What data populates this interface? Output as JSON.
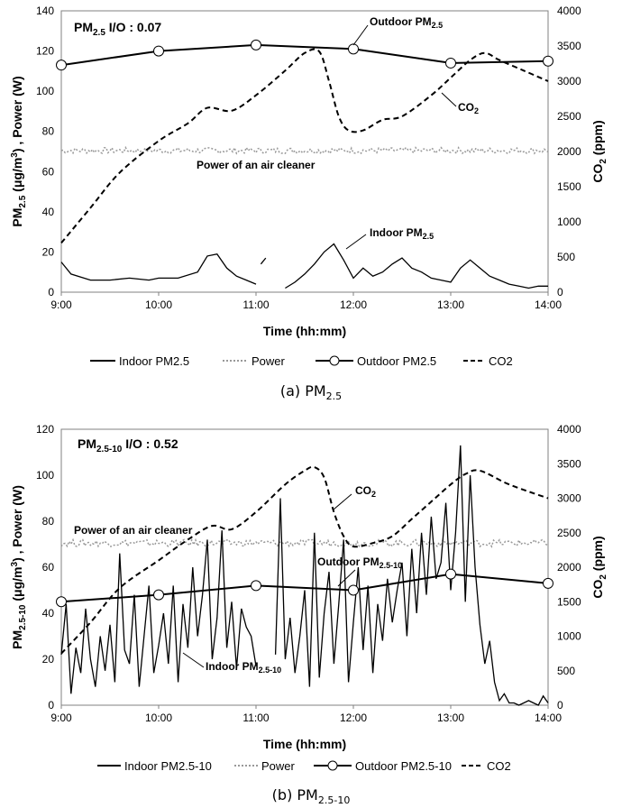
{
  "chart_data": [
    {
      "type": "line",
      "caption": {
        "prefix": "(a) PM",
        "sub": "2.5"
      },
      "io_label": {
        "main": "PM",
        "sub": "2.5",
        "rest": " I/O : 0.07"
      },
      "xlabel": "Time (hh:mm)",
      "ylabel_left": {
        "p1": "PM",
        "sub": "2.5",
        "p2": " (μg/m",
        "sup": "3",
        "p3": ") , Power (W)"
      },
      "ylabel_right": {
        "p1": "CO",
        "sub": "2",
        "p2": " (ppm)"
      },
      "x_ticks": [
        "9:00",
        "10:00",
        "11:00",
        "12:00",
        "13:00",
        "14:00"
      ],
      "ylim_left": [
        0,
        140
      ],
      "yticks_left": [
        "0",
        "20",
        "40",
        "60",
        "80",
        "100",
        "120",
        "140"
      ],
      "ylim_right": [
        0,
        4000
      ],
      "yticks_right": [
        "0",
        "500",
        "1000",
        "1500",
        "2000",
        "2500",
        "3000",
        "3500",
        "4000"
      ],
      "annotations": [
        {
          "main": "Outdoor PM",
          "sub": "2.5"
        },
        {
          "main": "CO",
          "sub": "2"
        },
        {
          "main": "Power of an air cleaner",
          "sub": ""
        },
        {
          "main": "Indoor PM",
          "sub": "2.5"
        }
      ],
      "series": {
        "indoor": {
          "name": "Indoor PM2.5",
          "x": [
            9.0,
            9.1,
            9.3,
            9.5,
            9.7,
            9.9,
            10.0,
            10.2,
            10.4,
            10.5,
            10.6,
            10.7,
            10.8,
            10.9,
            11.0
          ],
          "y": [
            15,
            9,
            6,
            6,
            7,
            6,
            7,
            7,
            10,
            18,
            19,
            12,
            8,
            6,
            4
          ],
          "x2": [
            11.05,
            11.1
          ],
          "y2": [
            14,
            17
          ],
          "x3": [
            11.3,
            11.4,
            11.5,
            11.6,
            11.7,
            11.8,
            11.9,
            12.0,
            12.1,
            12.2,
            12.3,
            12.4,
            12.5,
            12.6,
            12.7,
            12.8,
            12.9,
            13.0,
            13.1,
            13.2,
            13.3,
            13.4,
            13.5,
            13.6,
            13.7,
            13.8,
            13.9,
            14.0
          ],
          "y3": [
            2,
            5,
            9,
            14,
            20,
            24,
            16,
            7,
            12,
            8,
            10,
            14,
            17,
            12,
            10,
            7,
            6,
            5,
            12,
            16,
            12,
            8,
            6,
            4,
            3,
            2,
            3,
            3
          ]
        },
        "power": {
          "name": "Power",
          "x": [
            9.0,
            10.0,
            11.0,
            12.0,
            13.0,
            14.0
          ],
          "y": [
            70.5,
            70.5,
            70.5,
            70.5,
            70.5,
            70.5
          ],
          "noise": 1.5
        },
        "outdoor": {
          "name": "Outdoor PM2.5",
          "x": [
            9.0,
            10.0,
            11.0,
            12.0,
            13.0,
            14.0
          ],
          "y": [
            113,
            120,
            123,
            121,
            114,
            115
          ]
        },
        "co2": {
          "name": "CO2",
          "x": [
            9.0,
            9.3,
            9.6,
            10.0,
            10.3,
            10.5,
            10.75,
            11.0,
            11.3,
            11.5,
            11.65,
            11.75,
            11.85,
            11.95,
            12.1,
            12.3,
            12.5,
            12.8,
            13.0,
            13.2,
            13.35,
            13.5,
            13.75,
            14.0
          ],
          "y": [
            700,
            1200,
            1700,
            2150,
            2400,
            2620,
            2580,
            2800,
            3150,
            3400,
            3420,
            3000,
            2500,
            2300,
            2300,
            2450,
            2500,
            2800,
            3050,
            3300,
            3400,
            3300,
            3150,
            3000
          ]
        }
      },
      "legend": [
        "Indoor PM2.5",
        "Power",
        "Outdoor PM2.5",
        "CO2"
      ]
    },
    {
      "type": "line",
      "caption": {
        "prefix": "(b) PM",
        "sub": "2.5-10"
      },
      "io_label": {
        "main": "PM",
        "sub": "2.5-10",
        "rest": " I/O : 0.52"
      },
      "xlabel": "Time (hh:mm)",
      "ylabel_left": {
        "p1": "PM",
        "sub": "2.5-10",
        "p2": " (μg/m",
        "sup": "3",
        "p3": ") , Power (W)"
      },
      "ylabel_right": {
        "p1": "CO",
        "sub": "2",
        "p2": " (ppm)"
      },
      "x_ticks": [
        "9:00",
        "10:00",
        "11:00",
        "12:00",
        "13:00",
        "14:00"
      ],
      "ylim_left": [
        0,
        120
      ],
      "yticks_left": [
        "0",
        "20",
        "40",
        "60",
        "80",
        "100",
        "120"
      ],
      "ylim_right": [
        0,
        4000
      ],
      "yticks_right": [
        "0",
        "500",
        "1000",
        "1500",
        "2000",
        "2500",
        "3000",
        "3500",
        "4000"
      ],
      "annotations": [
        {
          "main": "CO",
          "sub": "2"
        },
        {
          "main": "Power of an air cleaner",
          "sub": ""
        },
        {
          "main": "Outdoor PM",
          "sub": "2.5-10"
        },
        {
          "main": "Indoor PM",
          "sub": "2.5-10"
        }
      ],
      "series": {
        "indoor": {
          "name": "Indoor PM2.5-10",
          "x": [
            9.0,
            9.05,
            9.1,
            9.15,
            9.2,
            9.25,
            9.3,
            9.35,
            9.4,
            9.45,
            9.5,
            9.55,
            9.6,
            9.65,
            9.7,
            9.75,
            9.8,
            9.85,
            9.9,
            9.95,
            10.0,
            10.05,
            10.1,
            10.15,
            10.2,
            10.25,
            10.3,
            10.35,
            10.4,
            10.45,
            10.5,
            10.55,
            10.6,
            10.65,
            10.7,
            10.75,
            10.8,
            10.85,
            10.9,
            10.95,
            11.0
          ],
          "y": [
            22,
            44,
            5,
            25,
            14,
            42,
            20,
            8,
            30,
            15,
            35,
            10,
            66,
            24,
            18,
            48,
            8,
            30,
            52,
            14,
            26,
            40,
            18,
            52,
            10,
            44,
            25,
            60,
            30,
            48,
            72,
            20,
            38,
            76,
            25,
            45,
            16,
            42,
            34,
            30,
            17
          ],
          "x2": [
            11.2,
            11.25,
            11.3,
            11.35,
            11.4,
            11.45,
            11.5,
            11.55,
            11.6,
            11.65,
            11.7,
            11.75,
            11.8,
            11.85,
            11.9,
            11.95,
            12.0,
            12.05,
            12.1,
            12.15,
            12.2,
            12.25,
            12.3,
            12.35,
            12.4,
            12.45,
            12.5,
            12.55,
            12.6,
            12.65,
            12.7,
            12.75,
            12.8,
            12.85,
            12.9,
            12.95,
            13.0,
            13.05,
            13.1,
            13.15,
            13.2,
            13.25,
            13.3,
            13.35,
            13.4,
            13.45,
            13.5,
            13.55,
            13.6,
            13.65,
            13.7,
            13.75,
            13.8,
            13.85,
            13.9,
            13.95,
            14.0
          ],
          "y2": [
            22,
            90,
            20,
            38,
            14,
            30,
            50,
            8,
            75,
            12,
            40,
            58,
            18,
            44,
            72,
            10,
            36,
            60,
            24,
            52,
            14,
            44,
            28,
            55,
            36,
            50,
            62,
            30,
            68,
            40,
            75,
            48,
            82,
            55,
            62,
            88,
            50,
            75,
            113,
            45,
            100,
            60,
            35,
            18,
            28,
            10,
            2,
            5,
            1,
            1,
            0,
            1,
            2,
            1,
            0,
            4,
            1
          ]
        },
        "power": {
          "name": "Power",
          "x": [
            9.0,
            10.0,
            11.0,
            12.0,
            13.0,
            14.0
          ],
          "y": [
            70.5,
            70.5,
            70.5,
            70.5,
            70.5,
            70.5
          ],
          "noise": 1.5
        },
        "outdoor": {
          "name": "Outdoor PM2.5-10",
          "x": [
            9.0,
            10.0,
            11.0,
            12.0,
            13.0,
            14.0
          ],
          "y": [
            45,
            48,
            52,
            50,
            57,
            53
          ]
        },
        "co2": {
          "name": "CO2",
          "x": [
            9.0,
            9.3,
            9.6,
            10.0,
            10.3,
            10.55,
            10.75,
            11.0,
            11.3,
            11.5,
            11.6,
            11.7,
            11.8,
            11.9,
            12.0,
            12.2,
            12.4,
            12.6,
            12.8,
            13.0,
            13.15,
            13.3,
            13.6,
            14.0
          ],
          "y": [
            750,
            1200,
            1700,
            2100,
            2400,
            2600,
            2550,
            2800,
            3200,
            3400,
            3450,
            3300,
            2800,
            2450,
            2300,
            2350,
            2450,
            2700,
            2950,
            3200,
            3350,
            3400,
            3200,
            3000
          ]
        }
      },
      "legend": [
        "Indoor PM2.5-10",
        "Power",
        "Outdoor PM2.5-10",
        "CO2"
      ]
    }
  ]
}
